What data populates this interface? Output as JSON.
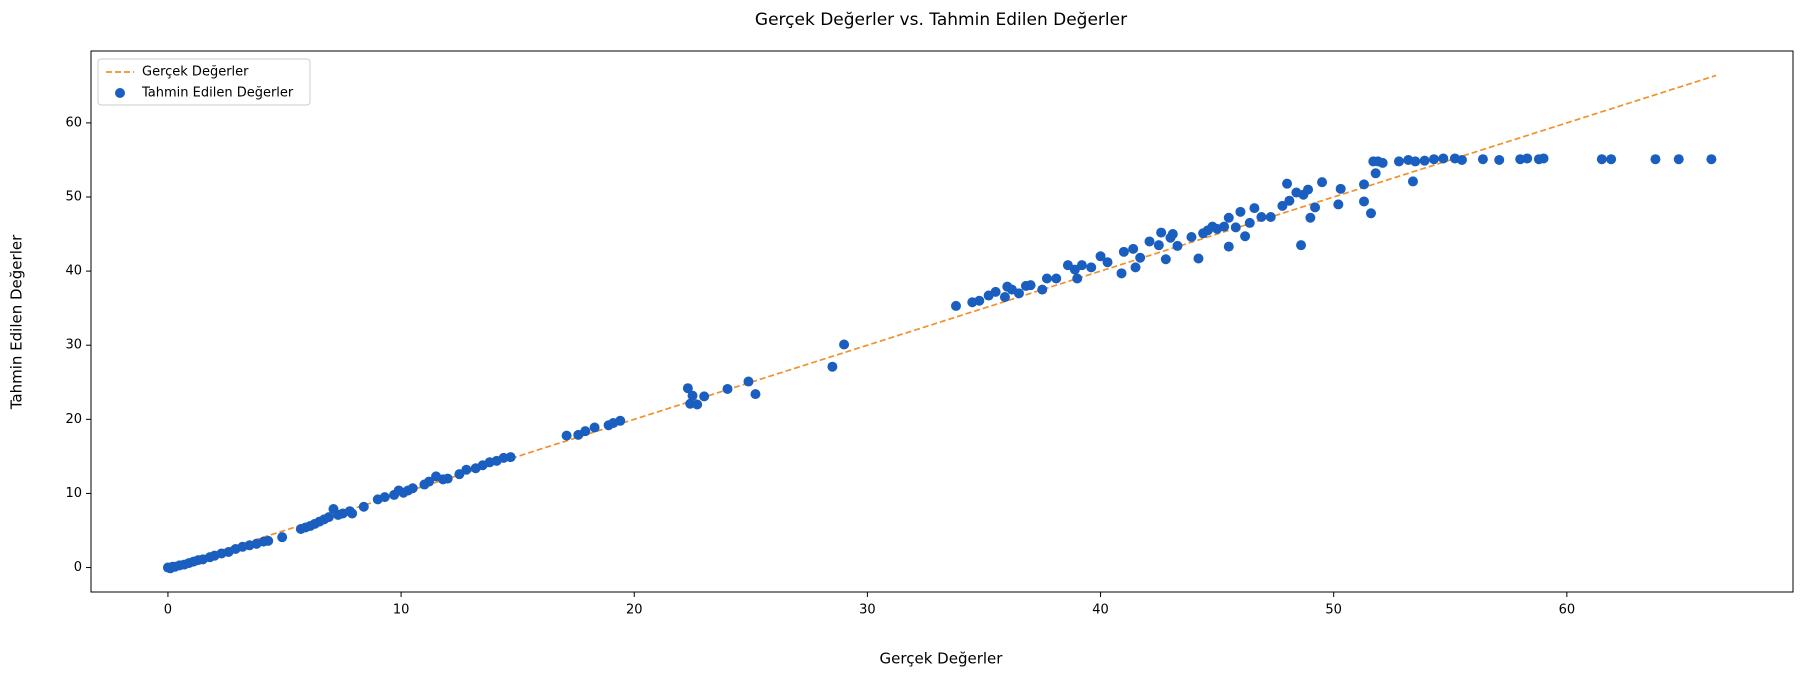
{
  "chart_data": {
    "type": "scatter",
    "title": "Gerçek Değerler vs. Tahmin Edilen Değerler",
    "xlabel": "Gerçek Değerler",
    "ylabel": "Tahmin Edilen Değerler",
    "xlim": [
      -3.3,
      69.7
    ],
    "ylim": [
      -3.3,
      69.7
    ],
    "xticks": [
      0,
      10,
      20,
      30,
      40,
      50,
      60
    ],
    "yticks": [
      0,
      10,
      20,
      30,
      40,
      50,
      60
    ],
    "legend": "upper left",
    "series": [
      {
        "name": "Gerçek Değerler",
        "style": "dashed-line",
        "color": "#f0912d",
        "x": [
          0,
          66.4
        ],
        "values": [
          0,
          66.4
        ]
      },
      {
        "name": "Tahmin Edilen Değerler",
        "style": "points",
        "color": "#1a5fc0",
        "x": [
          0,
          0.1,
          0.2,
          0.3,
          0.5,
          0.7,
          0.9,
          1.1,
          1.3,
          1.5,
          1.8,
          2.0,
          2.3,
          2.6,
          2.9,
          3.2,
          3.5,
          3.8,
          4.1,
          4.3,
          4.9,
          5.7,
          5.9,
          6.1,
          6.3,
          6.5,
          6.7,
          6.9,
          7.1,
          7.3,
          7.5,
          7.8,
          7.9,
          8.4,
          9.0,
          9.3,
          9.7,
          9.9,
          10.1,
          10.3,
          10.5,
          11.0,
          11.2,
          11.5,
          11.8,
          12.0,
          12.5,
          12.8,
          13.2,
          13.5,
          13.8,
          14.1,
          14.4,
          14.7,
          17.1,
          17.6,
          17.9,
          18.3,
          18.9,
          19.1,
          19.4,
          22.3,
          22.4,
          22.5,
          22.7,
          23.0,
          24.0,
          24.9,
          25.2,
          28.5,
          29.0,
          33.8,
          34.5,
          34.8,
          35.2,
          35.5,
          35.9,
          36.2,
          36.0,
          36.5,
          36.8,
          37.0,
          37.5,
          37.7,
          38.1,
          38.6,
          38.9,
          39.0,
          39.2,
          39.6,
          40.0,
          40.3,
          40.9,
          41.0,
          41.4,
          41.5,
          41.7,
          42.1,
          42.5,
          42.6,
          42.8,
          43.0,
          43.1,
          43.3,
          43.9,
          44.2,
          44.4,
          44.6,
          44.8,
          45.0,
          45.3,
          45.5,
          45.5,
          45.8,
          46.0,
          46.2,
          46.4,
          46.6,
          46.9,
          47.3,
          47.8,
          48.0,
          48.1,
          48.4,
          48.6,
          48.7,
          48.9,
          49.0,
          49.2,
          49.5,
          50.2,
          50.3,
          51.3,
          51.3,
          51.6,
          51.7,
          51.8,
          51.9,
          52.1,
          52.8,
          53.2,
          53.4,
          53.5,
          53.9,
          54.3,
          54.7,
          55.2,
          55.5,
          56.4,
          57.1,
          58.0,
          58.3,
          58.8,
          59.0,
          61.5,
          61.9,
          63.8,
          64.8,
          66.2
        ],
        "values": [
          0,
          -0.1,
          0.1,
          0.1,
          0.3,
          0.4,
          0.6,
          0.8,
          1.0,
          1.1,
          1.4,
          1.6,
          1.9,
          2.1,
          2.5,
          2.8,
          3.0,
          3.2,
          3.5,
          3.6,
          4.1,
          5.2,
          5.4,
          5.6,
          5.9,
          6.2,
          6.5,
          6.8,
          7.9,
          7.1,
          7.3,
          7.6,
          7.3,
          8.2,
          9.2,
          9.5,
          9.8,
          10.4,
          10.1,
          10.4,
          10.7,
          11.2,
          11.6,
          12.3,
          11.9,
          12.0,
          12.6,
          13.2,
          13.4,
          13.8,
          14.2,
          14.4,
          14.8,
          14.9,
          17.8,
          17.9,
          18.4,
          18.9,
          19.2,
          19.5,
          19.8,
          24.2,
          22.1,
          23.2,
          22.0,
          23.1,
          24.1,
          25.1,
          23.4,
          27.1,
          30.1,
          35.3,
          35.8,
          36.0,
          36.7,
          37.2,
          36.5,
          37.5,
          37.9,
          37.0,
          38.0,
          38.1,
          37.5,
          39.0,
          39.0,
          40.8,
          40.2,
          39.0,
          40.8,
          40.5,
          42.0,
          41.2,
          39.7,
          42.6,
          43.0,
          40.5,
          41.8,
          44.0,
          43.5,
          45.2,
          41.6,
          44.5,
          45.0,
          43.4,
          44.6,
          41.7,
          45.1,
          45.5,
          46.0,
          45.7,
          46.0,
          43.3,
          47.2,
          45.9,
          48.0,
          44.7,
          46.5,
          48.5,
          47.3,
          47.3,
          48.8,
          51.8,
          49.5,
          50.6,
          43.5,
          50.3,
          51.0,
          47.2,
          48.6,
          52.0,
          49.0,
          51.1,
          51.7,
          49.4,
          47.8,
          54.8,
          53.2,
          54.8,
          54.6,
          54.8,
          55.0,
          52.1,
          54.8,
          54.9,
          55.1,
          55.2,
          55.2,
          55.0,
          55.1,
          55.0,
          55.1,
          55.2,
          55.1,
          55.2,
          55.1,
          55.1,
          55.1,
          55.1,
          55.1
        ]
      }
    ]
  }
}
